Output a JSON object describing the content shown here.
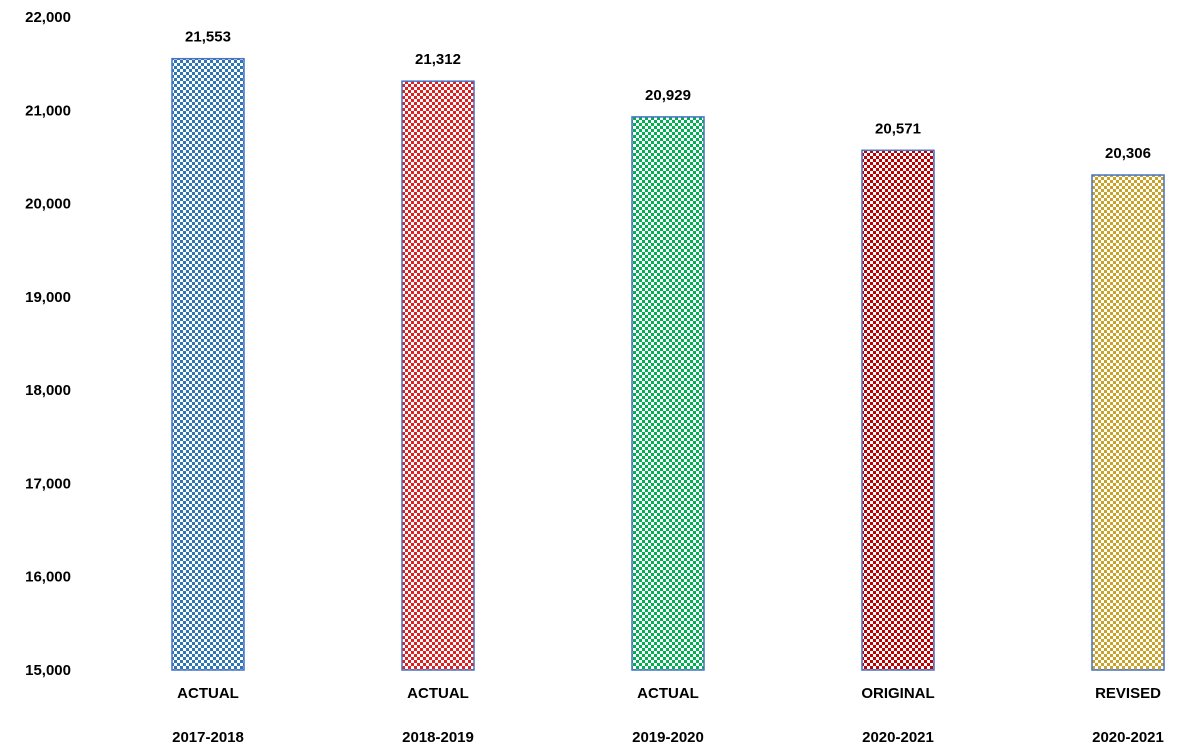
{
  "chart_data": {
    "type": "bar",
    "categories": [
      {
        "line1": "ACTUAL",
        "line2": "2017-2018"
      },
      {
        "line1": "ACTUAL",
        "line2": "2018-2019"
      },
      {
        "line1": "ACTUAL",
        "line2": "2019-2020"
      },
      {
        "line1": "ORIGINAL",
        "line2": "2020-2021"
      },
      {
        "line1": "REVISED",
        "line2": "2020-2021"
      }
    ],
    "values": [
      21553,
      21312,
      20929,
      20571,
      20306
    ],
    "data_labels": [
      "21,553",
      "21,312",
      "20,929",
      "20,571",
      "20,306"
    ],
    "bar_colors": [
      "#2e75b6",
      "#e02020",
      "#00b050",
      "#c00000",
      "#c9a227"
    ],
    "bar_pattern": "checkerboard",
    "bar_outline_color": "#4472c4",
    "ylim": [
      15000,
      22000
    ],
    "y_ticks": [
      15000,
      16000,
      17000,
      18000,
      19000,
      20000,
      21000,
      22000
    ],
    "y_tick_labels": [
      "15,000",
      "16,000",
      "17,000",
      "18,000",
      "19,000",
      "20,000",
      "21,000",
      "22,000"
    ],
    "grid": false,
    "legend": "none"
  }
}
